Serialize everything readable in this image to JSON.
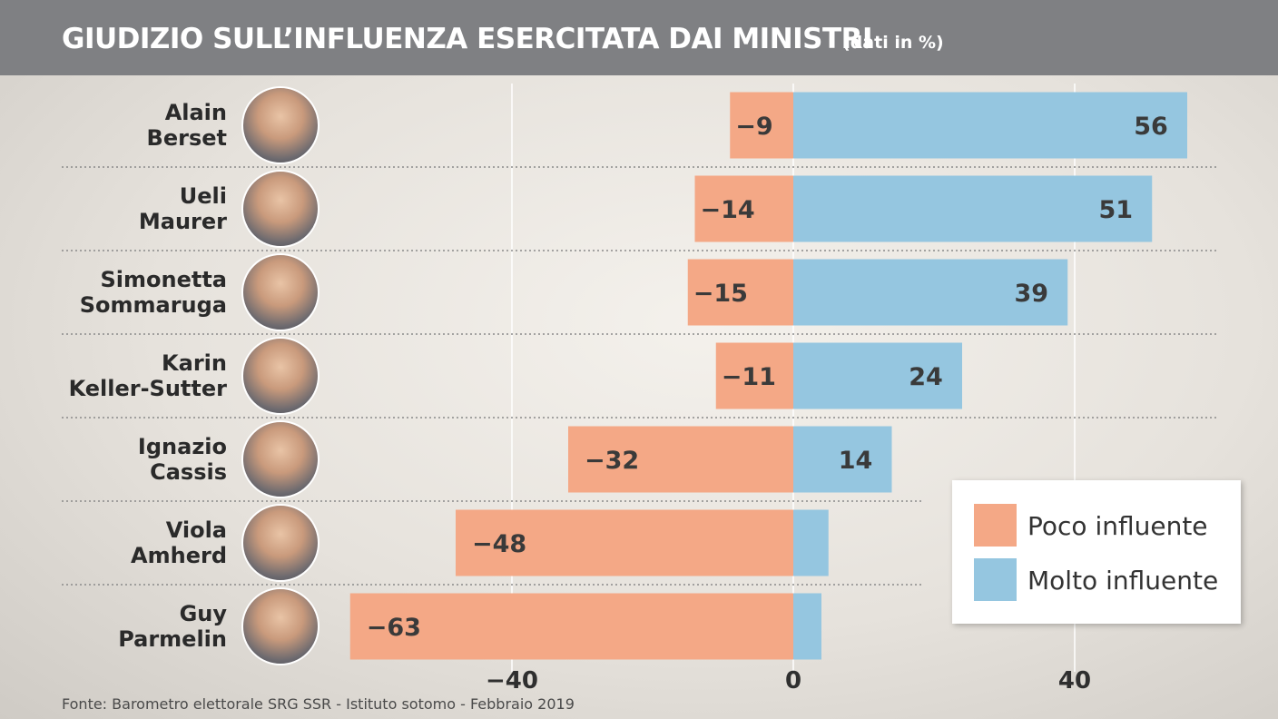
{
  "header": {
    "title": "GIUDIZIO SULL’INFLUENZA ESERCITATA DAI MINISTRI",
    "subtitle": "(dati in %)"
  },
  "footer": {
    "source": "Fonte: Barometro elettorale SRG SSR - Istituto sotomo - Febbraio 2019"
  },
  "legend": {
    "items": [
      {
        "label": "Poco influente",
        "color": "#f4a886"
      },
      {
        "label": "Molto influente",
        "color": "#95c6e0"
      }
    ]
  },
  "colors": {
    "negative": "#f4a886",
    "positive": "#95c6e0",
    "header_bg": "#7f8083",
    "label_text": "#3a3a3a"
  },
  "chart_data": {
    "type": "bar",
    "orientation": "horizontal",
    "stacked": "diverging",
    "categories": [
      "Alain Berset",
      "Ueli Maurer",
      "Simonetta Sommaruga",
      "Karin Keller-Sutter",
      "Ignazio Cassis",
      "Viola Amherd",
      "Guy Parmelin"
    ],
    "name_lines": [
      [
        "Alain",
        "Berset"
      ],
      [
        "Ueli",
        "Maurer"
      ],
      [
        "Simonetta",
        "Sommaruga"
      ],
      [
        "Karin",
        "Keller-Sutter"
      ],
      [
        "Ignazio",
        "Cassis"
      ],
      [
        "Viola",
        "Amherd"
      ],
      [
        "Guy",
        "Parmelin"
      ]
    ],
    "series": [
      {
        "name": "Poco influente",
        "values": [
          -9,
          -14,
          -15,
          -11,
          -32,
          -48,
          -63
        ],
        "labels": [
          "−9",
          "−14",
          "−15",
          "−11",
          "−32",
          "−48",
          "−63"
        ]
      },
      {
        "name": "Molto influente",
        "values": [
          56,
          51,
          39,
          24,
          14,
          5,
          4
        ],
        "labels": [
          "56",
          "51",
          "39",
          "24",
          "14",
          "",
          ""
        ]
      }
    ],
    "xlim": [
      -63,
      60
    ],
    "xticks": [
      -40,
      0,
      40
    ],
    "xtick_labels": [
      "−40",
      "0",
      "40"
    ],
    "grid": true,
    "legend_position": "bottom-right"
  }
}
